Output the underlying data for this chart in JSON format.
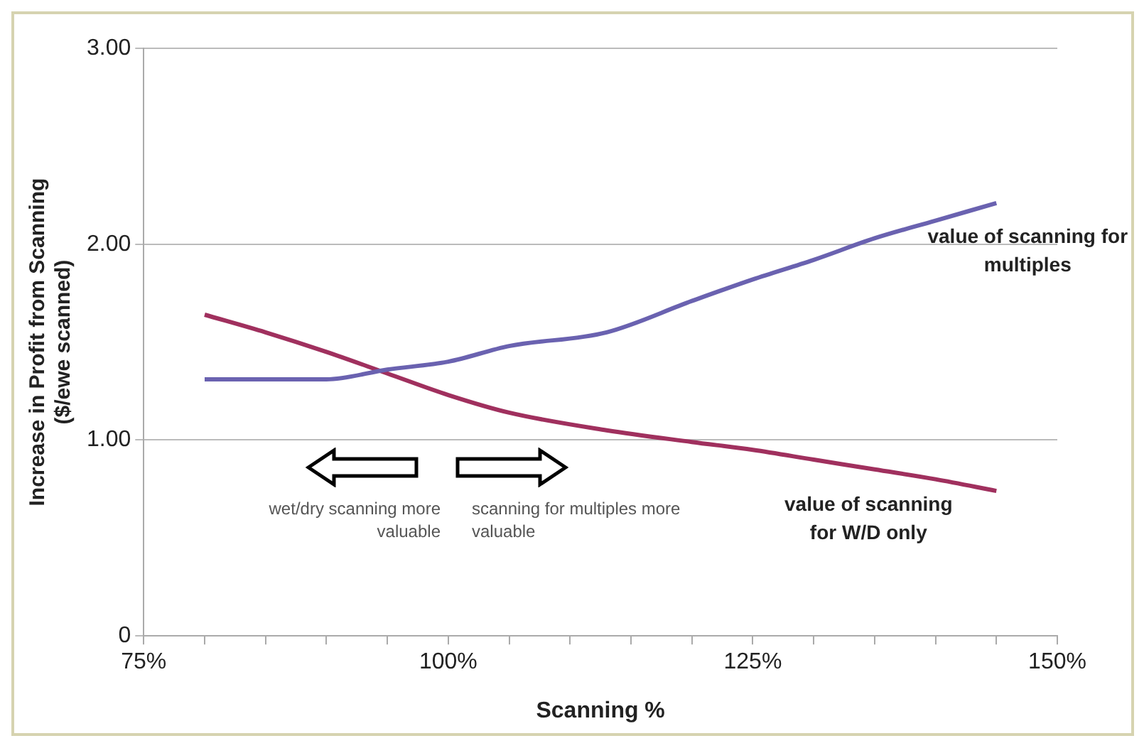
{
  "chart_data": {
    "type": "line",
    "xlabel": "Scanning %",
    "ylabel": "Increase in Profit from Scanning ($/ewe scanned)",
    "x": [
      80,
      85,
      90,
      95,
      100,
      105,
      113,
      120,
      125,
      130,
      135,
      140,
      145
    ],
    "series": [
      {
        "name": "value of scanning for multiples",
        "color": "#6a62b0",
        "values": [
          1.31,
          1.31,
          1.31,
          1.36,
          1.4,
          1.48,
          1.55,
          1.71,
          1.82,
          1.92,
          2.03,
          2.12,
          2.21
        ]
      },
      {
        "name": "value of scanning for W/D only",
        "color": "#a0305e",
        "values": [
          1.64,
          1.55,
          1.45,
          1.34,
          1.23,
          1.14,
          1.05,
          0.99,
          0.95,
          0.9,
          0.85,
          0.8,
          0.74
        ]
      }
    ],
    "xlim": [
      75,
      150
    ],
    "xticks": [
      {
        "value": 75,
        "label": "75%"
      },
      {
        "value": 80,
        "label": null
      },
      {
        "value": 85,
        "label": null
      },
      {
        "value": 90,
        "label": null
      },
      {
        "value": 95,
        "label": null
      },
      {
        "value": 100,
        "label": "100%"
      },
      {
        "value": 105,
        "label": null
      },
      {
        "value": 110,
        "label": null
      },
      {
        "value": 115,
        "label": null
      },
      {
        "value": 120,
        "label": null
      },
      {
        "value": 125,
        "label": "125%"
      },
      {
        "value": 130,
        "label": null
      },
      {
        "value": 135,
        "label": null
      },
      {
        "value": 140,
        "label": null
      },
      {
        "value": 145,
        "label": null
      },
      {
        "value": 150,
        "label": "150%"
      }
    ],
    "ylim": [
      0,
      3
    ],
    "yticks": [
      0,
      {
        "value": 1,
        "label": "1.00"
      },
      {
        "value": 2,
        "label": "2.00"
      },
      {
        "value": 3,
        "label": "3.00"
      }
    ],
    "grid": "y",
    "legend": false,
    "marker": "none",
    "line_style": "solid",
    "annotations": [
      "wet/dry scanning more valuable",
      "scanning for multiples more valuable"
    ]
  }
}
